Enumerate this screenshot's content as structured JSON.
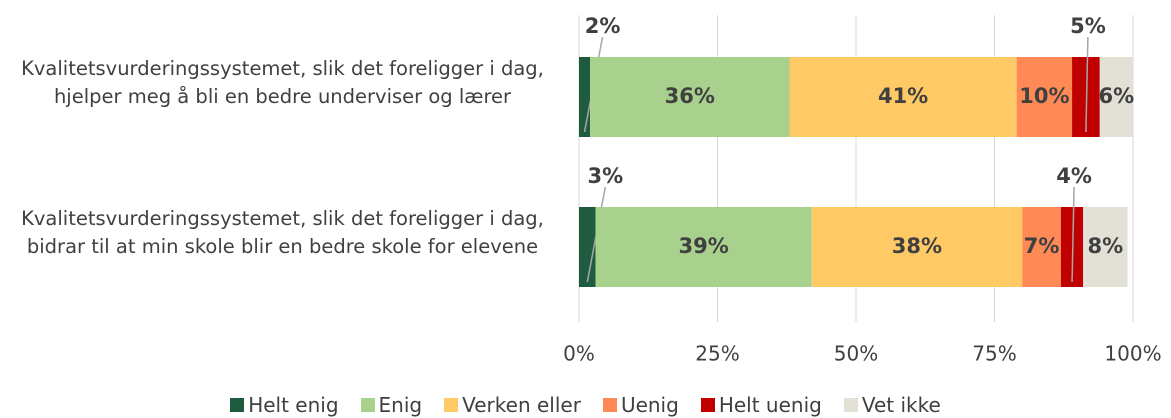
{
  "chart_data": {
    "type": "stacked-bar-horizontal",
    "categories": [
      "Kvalitetsvurderingssystemet, slik det foreligger i dag, hjelper meg å bli en bedre underviser og lærer",
      "Kvalitetsvurderingssystemet, slik det foreligger i dag, bidrar til at min skole blir en bedre skole for elevene"
    ],
    "series": [
      {
        "name": "Helt enig",
        "color": "#1e5b3f",
        "values": [
          2,
          3
        ],
        "value_labels": [
          "2%",
          "3%"
        ]
      },
      {
        "name": "Enig",
        "color": "#a9d18e",
        "values": [
          36,
          39
        ],
        "value_labels": [
          "36%",
          "39%"
        ]
      },
      {
        "name": "Verken eller",
        "color": "#ffca66",
        "values": [
          41,
          38
        ],
        "value_labels": [
          "41%",
          "38%"
        ]
      },
      {
        "name": "Uenig",
        "color": "#ff8a55",
        "values": [
          10,
          7
        ],
        "value_labels": [
          "10%",
          "7%"
        ]
      },
      {
        "name": "Helt uenig",
        "color": "#c00000",
        "values": [
          5,
          4
        ],
        "value_labels": [
          "5%",
          "4%"
        ]
      },
      {
        "name": "Vet ikke",
        "color": "#e3e0d6",
        "values": [
          6,
          8
        ],
        "value_labels": [
          "6%",
          "8%"
        ]
      }
    ],
    "xlim": [
      0,
      100
    ],
    "xticks": [
      {
        "value": 0,
        "label": "0%"
      },
      {
        "value": 25,
        "label": "25%"
      },
      {
        "value": 50,
        "label": "50%"
      },
      {
        "value": 75,
        "label": "75%"
      },
      {
        "value": 100,
        "label": "100%"
      }
    ],
    "grid": true,
    "legend": "bottom"
  }
}
